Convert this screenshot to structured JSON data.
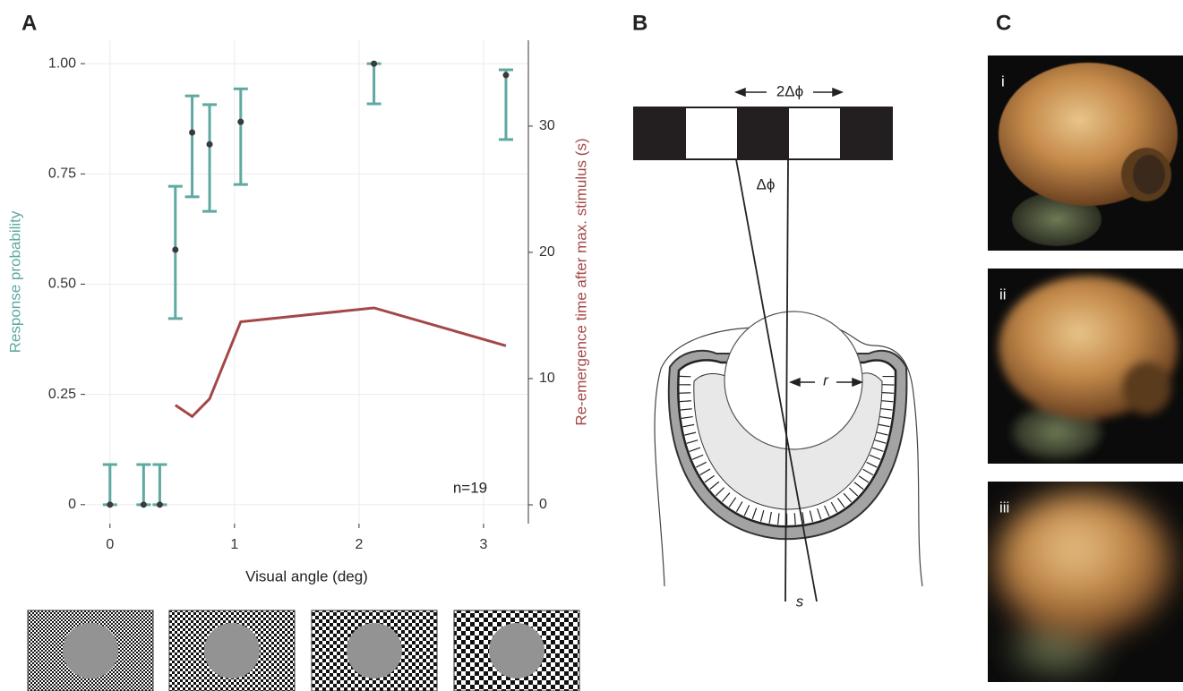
{
  "chart_data": {
    "type": "scatter",
    "panel_label": "A",
    "xlabel": "Visual angle (deg)",
    "ylabel": "Response probability",
    "y2label": "Re-emergence time after max. stimulus (s)",
    "annotation": "n=19",
    "xlim": [
      -0.2,
      3.36
    ],
    "ylim": [
      -0.043,
      1.053
    ],
    "y2lim": [
      -1.49,
      36.8
    ],
    "xticks": [
      0,
      1,
      2,
      3
    ],
    "yticks": [
      0,
      0.25,
      {
        "value": 0.5,
        "label": "0.50"
      },
      0.75,
      {
        "value": 1,
        "label": "1.00"
      }
    ],
    "y2ticks": [
      0,
      10,
      20,
      30
    ],
    "grid": true,
    "series": [
      {
        "color": "#5fa9a1",
        "axis": "y",
        "x": [
          0,
          0.27,
          0.4,
          0.525,
          0.66,
          0.8,
          1.05,
          2.12,
          3.18
        ],
        "values": [
          0,
          0,
          0,
          0.578,
          0.844,
          0.817,
          0.868,
          1,
          0.974
        ],
        "lower": [
          0,
          0,
          0,
          0.422,
          0.698,
          0.665,
          0.726,
          0.909,
          0.828
        ],
        "upper": [
          0.091,
          0.091,
          0.091,
          0.722,
          0.927,
          0.907,
          0.943,
          1,
          0.986
        ]
      },
      {
        "type": "line",
        "color": "#a34848",
        "axis": "y2",
        "x": [
          0.525,
          0.66,
          0.8,
          1.05,
          2.12,
          3.18
        ],
        "values": [
          7.9,
          7.0,
          8.4,
          14.5,
          15.6,
          12.6
        ]
      }
    ]
  },
  "diagram": {
    "panel_label": "B",
    "period": "2Δϕ",
    "angle": "Δϕ",
    "radius": "r",
    "distance": "s"
  },
  "photos": {
    "panel_label": "C",
    "items": [
      "i",
      "ii",
      "iii"
    ]
  }
}
